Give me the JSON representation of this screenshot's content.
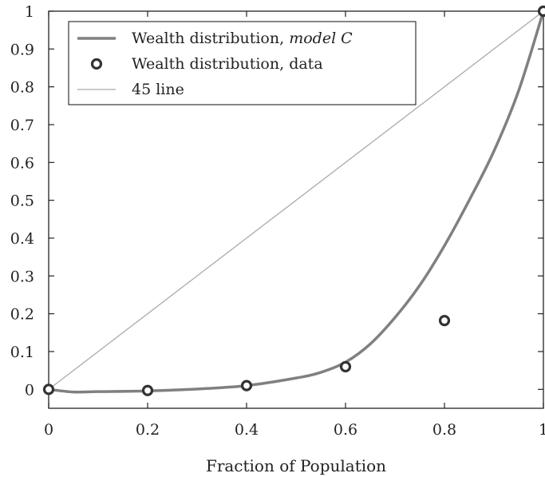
{
  "chart_data": {
    "type": "line",
    "title": "",
    "xlabel": "Fraction of Population",
    "ylabel": "",
    "xlim": [
      0,
      1
    ],
    "ylim": [
      -0.05,
      1
    ],
    "xticks": [
      0,
      0.2,
      0.4,
      0.6,
      0.8,
      1
    ],
    "xtick_labels": [
      "0",
      "0.2",
      "0.4",
      "0.6",
      "0.8",
      "1"
    ],
    "yticks": [
      0,
      0.1,
      0.2,
      0.3,
      0.4,
      0.5,
      0.6,
      0.7,
      0.8,
      0.9,
      1
    ],
    "ytick_labels": [
      "0",
      "0.1",
      "0.2",
      "0.3",
      "0.4",
      "0.5",
      "0.6",
      "0.7",
      "0.8",
      "0.9",
      "1"
    ],
    "grid": false,
    "legend_position": "top-left",
    "series": [
      {
        "name": "Wealth distribution, model C",
        "name_plain": "Wealth distribution, ",
        "name_italic": "model C",
        "kind": "line",
        "color": "#808080",
        "x": [
          0,
          0.05,
          0.1,
          0.2,
          0.3,
          0.4,
          0.5,
          0.55,
          0.6,
          0.65,
          0.7,
          0.75,
          0.8,
          0.85,
          0.9,
          0.95,
          1.0
        ],
        "y": [
          0,
          -0.007,
          -0.006,
          -0.004,
          0.001,
          0.01,
          0.03,
          0.045,
          0.072,
          0.12,
          0.19,
          0.275,
          0.38,
          0.5,
          0.63,
          0.79,
          1.0
        ]
      },
      {
        "name": "Wealth distribution, data",
        "kind": "scatter",
        "color": "#333333",
        "x": [
          0,
          0.2,
          0.4,
          0.6,
          0.8,
          1.0
        ],
        "y": [
          0,
          -0.003,
          0.01,
          0.06,
          0.182,
          1.0
        ]
      },
      {
        "name": "45 line",
        "kind": "line",
        "color": "#aaaaaa",
        "x": [
          0,
          1
        ],
        "y": [
          0,
          1
        ]
      }
    ]
  }
}
